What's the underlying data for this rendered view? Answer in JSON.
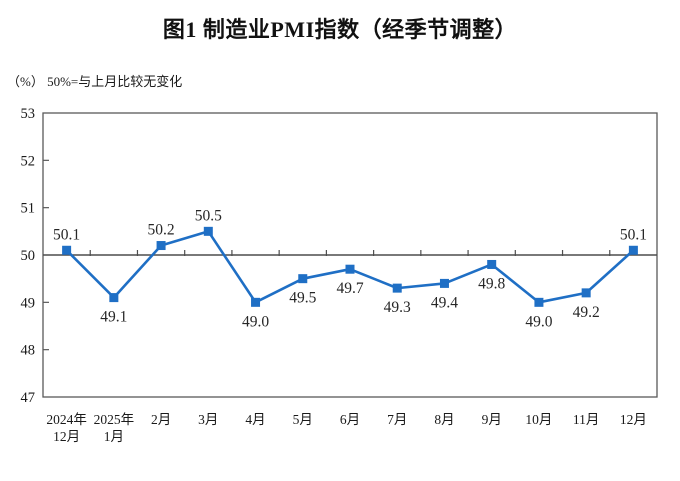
{
  "header": {
    "title": "图1  制造业PMI指数（经季节调整）"
  },
  "chart_data": {
    "type": "line",
    "title": "图1  制造业PMI指数（经季节调整）",
    "unit_note": "（%） 50%=与上月比较无变化",
    "categories": [
      "2024年\n12月",
      "2025年\n1月",
      "2月",
      "3月",
      "4月",
      "5月",
      "6月",
      "7月",
      "8月",
      "9月",
      "10月",
      "11月",
      "12月"
    ],
    "values": [
      50.1,
      49.1,
      50.2,
      50.5,
      49.0,
      49.5,
      49.7,
      49.3,
      49.4,
      49.8,
      49.0,
      49.2,
      50.1
    ],
    "point_labels": [
      "50.1",
      "49.1",
      "50.2",
      "50.5",
      "49.0",
      "49.5",
      "49.7",
      "49.3",
      "49.4",
      "49.8",
      "49.0",
      "49.2",
      "50.1"
    ],
    "yticks": [
      47,
      48,
      49,
      50,
      51,
      52,
      53
    ],
    "ylim": [
      47,
      53
    ],
    "reference_line": 50,
    "grid": false,
    "legend": false,
    "xlabel": "",
    "ylabel": "",
    "colors": {
      "line": "#1f6fc5",
      "marker": "#1f6fc5",
      "axis": "#595959",
      "reference": "#4d4d4d",
      "text": "#1a1a1a"
    }
  }
}
